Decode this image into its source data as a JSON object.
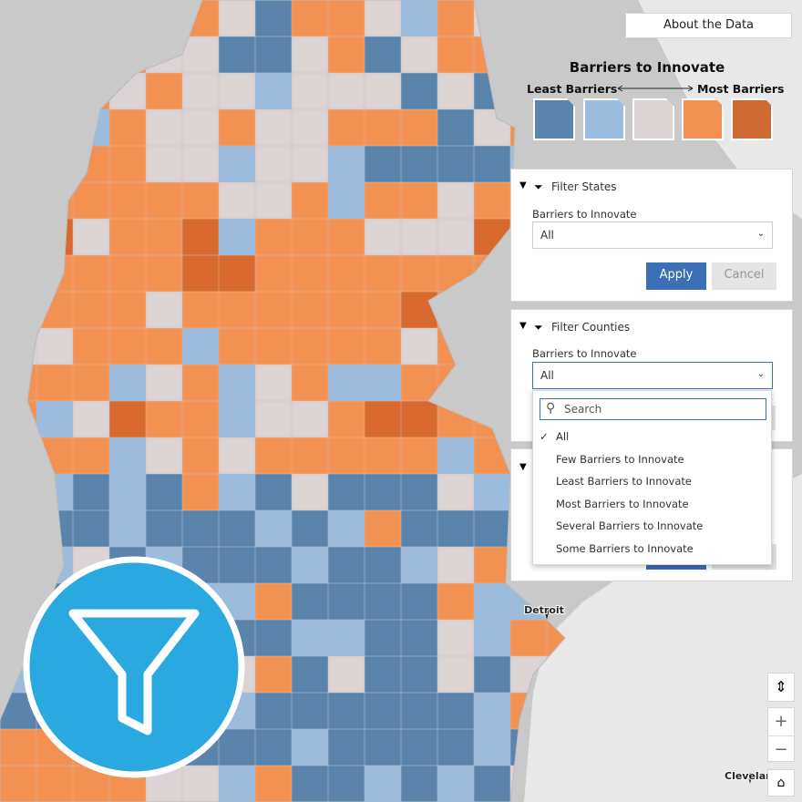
{
  "map": {
    "about_button": "About the Data",
    "legend": {
      "title": "Barriers to Innovate",
      "low": "Least Barriers",
      "high": "Most Barriers"
    },
    "places": [
      "Detroit",
      "Cleveland"
    ]
  },
  "filter_states": {
    "title": "Filter States",
    "label": "Barriers to Innovate",
    "selected": "All",
    "apply": "Apply",
    "cancel": "Cancel"
  },
  "filter_counties": {
    "title": "Filter Counties",
    "label": "Barriers to Innovate",
    "selected": "All",
    "search_placeholder": "Search",
    "options": [
      "All",
      "Few Barriers to Innovate",
      "Least Barriers to Innovate",
      "Most Barriers to Innovate",
      "Several Barriers to Innovate",
      "Some Barriers to Innovate"
    ]
  }
}
